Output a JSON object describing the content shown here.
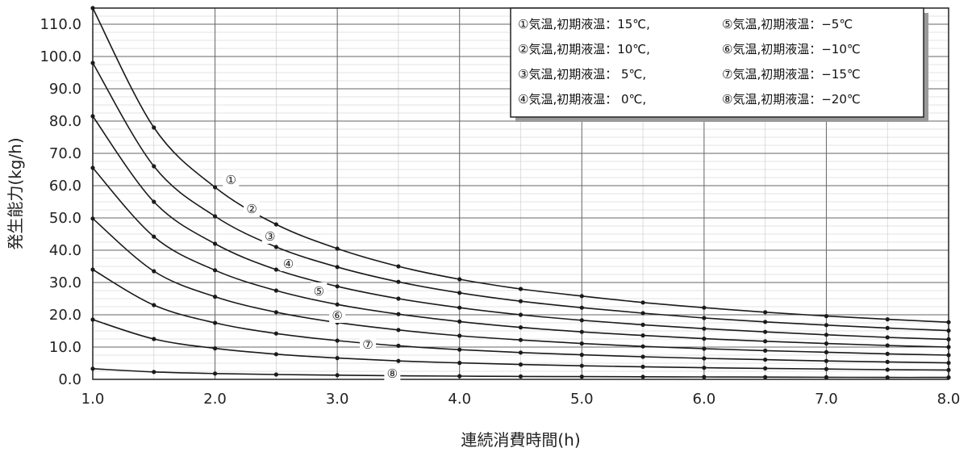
{
  "chart_data": {
    "type": "line",
    "xlabel": "連続消費時間(h)",
    "ylabel": "発生能力(kg/h)",
    "xlim": [
      1.0,
      8.0
    ],
    "ylim": [
      0.0,
      115.0
    ],
    "x_ticks": [
      "1.0",
      "2.0",
      "3.0",
      "4.0",
      "5.0",
      "6.0",
      "7.0",
      "8.0"
    ],
    "y_ticks": [
      "0.0",
      "10.0",
      "20.0",
      "30.0",
      "40.0",
      "50.0",
      "60.0",
      "70.0",
      "80.0",
      "90.0",
      "100.0",
      "110.0"
    ],
    "grid": true,
    "legend_position": "top-right",
    "legend": [
      "①気温,初期液温：15℃,",
      "②気温,初期液温：10℃,",
      "③気温,初期液温： 5℃,",
      "④気温,初期液温： 0℃,",
      "⑤気温,初期液温：−5℃",
      "⑥気温,初期液温：−10℃",
      "⑦気温,初期液温：−15℃",
      "⑧気温,初期液温：−20℃"
    ],
    "x": [
      1.0,
      1.5,
      2.0,
      2.5,
      3.0,
      3.5,
      4.0,
      4.5,
      5.0,
      5.5,
      6.0,
      6.5,
      7.0,
      7.5,
      8.0
    ],
    "series": [
      {
        "name": "①",
        "values": [
          115.0,
          78.0,
          59.5,
          48.0,
          40.5,
          35.0,
          31.0,
          28.0,
          25.8,
          23.8,
          22.2,
          20.8,
          19.6,
          18.6,
          17.7
        ]
      },
      {
        "name": "②",
        "values": [
          98.0,
          66.0,
          50.5,
          41.0,
          34.8,
          30.2,
          26.8,
          24.2,
          22.2,
          20.5,
          19.0,
          17.8,
          16.8,
          15.9,
          15.1
        ]
      },
      {
        "name": "③",
        "values": [
          81.5,
          55.0,
          42.0,
          34.0,
          28.8,
          25.0,
          22.2,
          20.0,
          18.3,
          16.9,
          15.7,
          14.7,
          13.8,
          13.0,
          12.4
        ]
      },
      {
        "name": "④",
        "values": [
          65.5,
          44.2,
          33.8,
          27.5,
          23.2,
          20.2,
          17.9,
          16.1,
          14.7,
          13.6,
          12.6,
          11.8,
          11.1,
          10.5,
          10.0
        ]
      },
      {
        "name": "⑤",
        "values": [
          49.8,
          33.5,
          25.6,
          20.8,
          17.6,
          15.3,
          13.5,
          12.2,
          11.1,
          10.2,
          9.5,
          8.9,
          8.4,
          7.9,
          7.5
        ]
      },
      {
        "name": "⑥",
        "values": [
          34.0,
          23.0,
          17.5,
          14.2,
          12.0,
          10.4,
          9.2,
          8.3,
          7.6,
          7.0,
          6.5,
          6.1,
          5.7,
          5.4,
          5.1
        ]
      },
      {
        "name": "⑦",
        "values": [
          18.5,
          12.5,
          9.6,
          7.8,
          6.6,
          5.7,
          5.1,
          4.6,
          4.2,
          3.9,
          3.6,
          3.4,
          3.2,
          3.0,
          2.9
        ]
      },
      {
        "name": "⑧",
        "values": [
          3.3,
          2.3,
          1.8,
          1.5,
          1.3,
          1.1,
          1.0,
          0.9,
          0.85,
          0.8,
          0.75,
          0.7,
          0.65,
          0.6,
          0.6
        ]
      }
    ],
    "curve_labels": [
      {
        "text": "①",
        "x": 2.13,
        "y": 62.0
      },
      {
        "text": "②",
        "x": 2.3,
        "y": 53.0
      },
      {
        "text": "③",
        "x": 2.45,
        "y": 44.5
      },
      {
        "text": "④",
        "x": 2.6,
        "y": 36.0
      },
      {
        "text": "⑤",
        "x": 2.85,
        "y": 27.5
      },
      {
        "text": "⑥",
        "x": 3.0,
        "y": 20.0
      },
      {
        "text": "⑦",
        "x": 3.25,
        "y": 11.0
      },
      {
        "text": "⑧",
        "x": 3.45,
        "y": 2.0
      }
    ]
  }
}
